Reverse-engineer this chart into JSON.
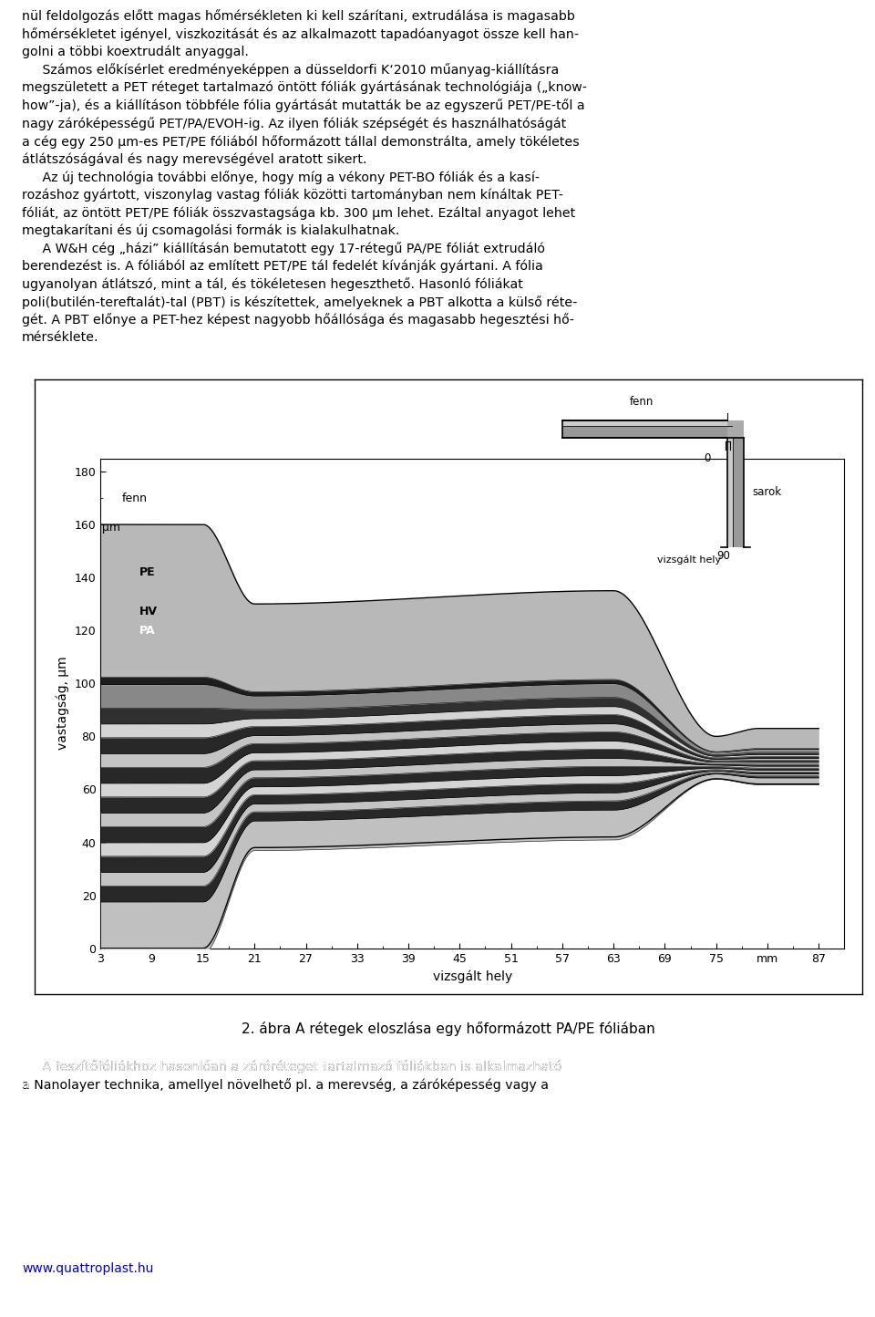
{
  "title_text": "2. ábra A rétegek eloszlása egy hőformázott PA/PE fóliában",
  "xlabel": "vizsgált hely",
  "ylabel": "vastagság, µm",
  "xlim": [
    3,
    90
  ],
  "ylim": [
    0,
    185
  ],
  "xticks": [
    3,
    9,
    15,
    21,
    27,
    33,
    39,
    45,
    51,
    57,
    63,
    69,
    75,
    81,
    87
  ],
  "xtick_labels": [
    "3",
    "9",
    "15",
    "21",
    "27",
    "33",
    "39",
    "45",
    "51",
    "57",
    "63",
    "69",
    "75",
    "mm",
    "87"
  ],
  "yticks": [
    0,
    20,
    40,
    60,
    80,
    100,
    120,
    140,
    160,
    180
  ],
  "background_color": "#ffffff",
  "text_top_left": "fenn",
  "text_um_left": "µm",
  "label_PE": "PE",
  "label_HV": "HV",
  "label_PA": "PA",
  "inset_label_fenn": "fenn",
  "inset_label_0": "0",
  "inset_label_sarok": "sarok",
  "inset_label_vizsgalt": "vizsgált hely",
  "inset_label_90": "90",
  "footer_url": "www.quattroplast.hu",
  "layer_fractions_top_to_bot": [
    0.36,
    0.018,
    0.055,
    0.038,
    0.032,
    0.038,
    0.032,
    0.038,
    0.032,
    0.038,
    0.032,
    0.038,
    0.032,
    0.038,
    0.032,
    0.038,
    0.121
  ],
  "layer_colors_top_to_bot": [
    "#b8b8b8",
    "#1e1e1e",
    "#888888",
    "#303030",
    "#d4d4d4",
    "#282828",
    "#c4c4c4",
    "#282828",
    "#d4d4d4",
    "#282828",
    "#c4c4c4",
    "#282828",
    "#d4d4d4",
    "#282828",
    "#c4c4c4",
    "#282828",
    "#c0c0c0"
  ]
}
